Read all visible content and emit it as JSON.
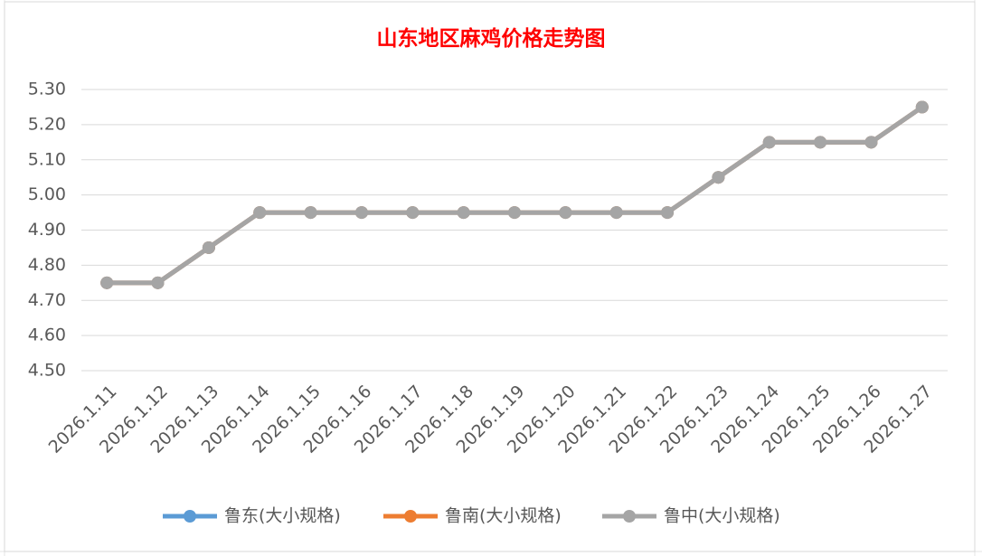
{
  "chart_data": {
    "type": "line",
    "title": "山东地区麻鸡价格走势图",
    "categories": [
      "2026.1.11",
      "2026.1.12",
      "2026.1.13",
      "2026.1.14",
      "2026.1.15",
      "2026.1.16",
      "2026.1.17",
      "2026.1.18",
      "2026.1.19",
      "2026.1.20",
      "2026.1.21",
      "2026.1.22",
      "2026.1.23",
      "2026.1.24",
      "2026.1.25",
      "2026.1.26",
      "2026.1.27"
    ],
    "series": [
      {
        "name": "鲁东(大小规格)",
        "color": "#5b9bd5",
        "values": [
          4.75,
          4.75,
          4.85,
          4.95,
          4.95,
          4.95,
          4.95,
          4.95,
          4.95,
          4.95,
          4.95,
          4.95,
          5.05,
          5.15,
          5.15,
          5.15,
          5.25
        ]
      },
      {
        "name": "鲁南(大小规格)",
        "color": "#ed7d31",
        "values": [
          4.75,
          4.75,
          4.85,
          4.95,
          4.95,
          4.95,
          4.95,
          4.95,
          4.95,
          4.95,
          4.95,
          4.95,
          5.05,
          5.15,
          5.15,
          5.15,
          5.25
        ]
      },
      {
        "name": "鲁中(大小规格)",
        "color": "#a5a5a5",
        "values": [
          4.75,
          4.75,
          4.85,
          4.95,
          4.95,
          4.95,
          4.95,
          4.95,
          4.95,
          4.95,
          4.95,
          4.95,
          5.05,
          5.15,
          5.15,
          5.15,
          5.25
        ]
      }
    ],
    "ylim": [
      4.5,
      5.3
    ],
    "yticks": [
      {
        "value": 4.5,
        "label": "4.50"
      },
      {
        "value": 4.6,
        "label": "4.60"
      },
      {
        "value": 4.7,
        "label": "4.70"
      },
      {
        "value": 4.8,
        "label": "4.80"
      },
      {
        "value": 4.9,
        "label": "4.90"
      },
      {
        "value": 5.0,
        "label": "5.00"
      },
      {
        "value": 5.1,
        "label": "5.10"
      },
      {
        "value": 5.2,
        "label": "5.20"
      },
      {
        "value": 5.3,
        "label": "5.30"
      }
    ],
    "grid": true,
    "legend": "bottom"
  }
}
